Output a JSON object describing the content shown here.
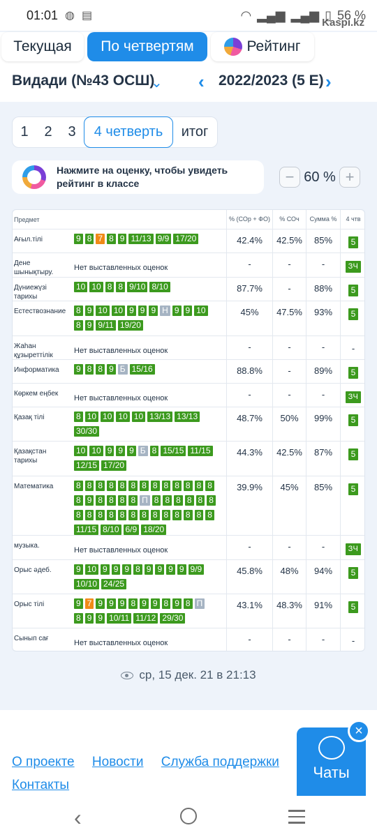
{
  "status": {
    "time": "01:01",
    "battery": "56 %",
    "watermark": "Kaspi.kz"
  },
  "tabs": [
    {
      "label": "Текущая"
    },
    {
      "label": "По четвертям"
    },
    {
      "label": "Рейтинг"
    }
  ],
  "school": "Видади (№43 ОСШ)",
  "year": "2022/2023 (5 E)",
  "quarters": [
    "1",
    "2",
    "3",
    "4 четверть",
    "итог"
  ],
  "hint": "Нажмите на оценку, чтобы увидеть рейтинг в классе",
  "zoom": {
    "value": "60 %",
    "minus": "−",
    "plus": "+"
  },
  "table": {
    "headers": {
      "subject": "Предмет",
      "p1": "% (СОр + ФО)",
      "p2": "% СОч",
      "p3": "Сумма %",
      "final": "4 чтв"
    },
    "rows": [
      {
        "subject": "Ағыл.тілі",
        "lines": [
          [
            "9",
            "8",
            "7",
            "8",
            "9",
            "11/13",
            "9/9",
            "17/20"
          ]
        ],
        "p1": "42.4%",
        "p2": "42.5%",
        "p3": "85%",
        "final": "5"
      },
      {
        "subject": "Дене шынықтыру.",
        "none": "Нет выставленных оценок",
        "p1": "-",
        "p2": "-",
        "p3": "-",
        "final": "ЗЧ"
      },
      {
        "subject": "Дүниежүзі тарихы",
        "lines": [
          [
            "10",
            "10",
            "8",
            "8",
            "9/10",
            "8/10"
          ]
        ],
        "p1": "87.7%",
        "p2": "-",
        "p3": "88%",
        "final": "5"
      },
      {
        "subject": "Естествознание",
        "lines": [
          [
            "8",
            "9",
            "10",
            "10",
            "9",
            "9",
            "9",
            "Н",
            "9",
            "9",
            "10"
          ],
          [
            "8",
            "9",
            "9/11",
            "19/20"
          ]
        ],
        "p1": "45%",
        "p2": "47.5%",
        "p3": "93%",
        "final": "5"
      },
      {
        "subject": "Жаһан құзыреттілік",
        "none": "Нет выставленных оценок",
        "p1": "-",
        "p2": "-",
        "p3": "-",
        "final": "-"
      },
      {
        "subject": "Информатика",
        "lines": [
          [
            "9",
            "8",
            "8",
            "9",
            "Б",
            "15/16"
          ]
        ],
        "p1": "88.8%",
        "p2": "-",
        "p3": "89%",
        "final": "5"
      },
      {
        "subject": "Көркем еңбек",
        "none": "Нет выставленных оценок",
        "p1": "-",
        "p2": "-",
        "p3": "-",
        "final": "ЗЧ"
      },
      {
        "subject": "Қазақ тілі",
        "lines": [
          [
            "8",
            "10",
            "10",
            "10",
            "10",
            "13/13",
            "13/13"
          ],
          [
            "30/30"
          ]
        ],
        "p1": "48.7%",
        "p2": "50%",
        "p3": "99%",
        "final": "5"
      },
      {
        "subject": "Қазақстан тарихы",
        "lines": [
          [
            "10",
            "10",
            "9",
            "9",
            "9",
            "Б",
            "8",
            "15/15",
            "11/15"
          ],
          [
            "12/15",
            "17/20"
          ]
        ],
        "p1": "44.3%",
        "p2": "42.5%",
        "p3": "87%",
        "final": "5"
      },
      {
        "subject": "Математика",
        "lines": [
          [
            "8",
            "8",
            "8",
            "8",
            "8",
            "8",
            "8",
            "8",
            "8",
            "8",
            "8",
            "8",
            "8"
          ],
          [
            "8",
            "9",
            "8",
            "8",
            "8",
            "8",
            "П",
            "8",
            "8",
            "8",
            "8",
            "8",
            "8"
          ],
          [
            "8",
            "8",
            "8",
            "8",
            "8",
            "8",
            "8",
            "8",
            "8",
            "8",
            "8",
            "8",
            "8"
          ],
          [
            "11/15",
            "8/10",
            "6/9",
            "18/20"
          ]
        ],
        "p1": "39.9%",
        "p2": "45%",
        "p3": "85%",
        "final": "5"
      },
      {
        "subject": "музыка.",
        "none": "Нет выставленных оценок",
        "p1": "-",
        "p2": "-",
        "p3": "-",
        "final": "ЗЧ"
      },
      {
        "subject": "Орыс әдеб.",
        "lines": [
          [
            "9",
            "10",
            "9",
            "9",
            "9",
            "8",
            "9",
            "9",
            "9",
            "9",
            "9/9"
          ],
          [
            "10/10",
            "24/25"
          ]
        ],
        "p1": "45.8%",
        "p2": "48%",
        "p3": "94%",
        "final": "5"
      },
      {
        "subject": "Орыс тілі",
        "lines": [
          [
            "9",
            "7",
            "9",
            "9",
            "9",
            "8",
            "9",
            "9",
            "8",
            "9",
            "8",
            "П"
          ],
          [
            "8",
            "9",
            "9",
            "10/11",
            "11/12",
            "29/30"
          ]
        ],
        "p1": "43.1%",
        "p2": "48.3%",
        "p3": "91%",
        "final": "5"
      },
      {
        "subject": "Сынып сағ",
        "none": "Нет выставленных оценок",
        "p1": "-",
        "p2": "-",
        "p3": "-",
        "final": "-"
      }
    ]
  },
  "updated": "ср, 15 дек. 21 в 21:13",
  "footer_links": [
    "О проекте",
    "Новости",
    "Служба поддержки",
    "Контакты"
  ],
  "chats": {
    "label": "Чаты",
    "close": "×"
  },
  "colors": {
    "accent": "#1f8ce8",
    "grade_green": "#3c9a1e",
    "grade_orange": "#f08a17",
    "grade_gray": "#a6b4c3"
  }
}
